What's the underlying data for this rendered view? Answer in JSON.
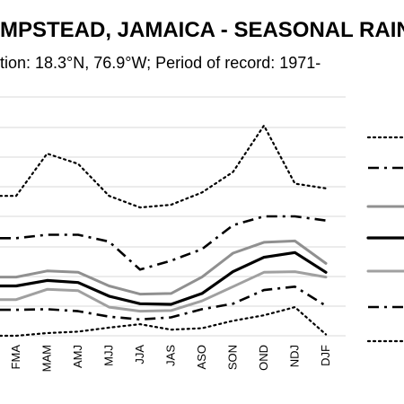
{
  "title": "MPSTEAD, JAMAICA - SEASONAL RAINF",
  "subtitle": "tion: 18.3°N, 76.9°W; Period of record: 1971-",
  "chart_data": {
    "type": "line",
    "categories": [
      "FMA",
      "MAM",
      "AMJ",
      "MJJ",
      "JJA",
      "JAS",
      "ASO",
      "SON",
      "OND",
      "NDJ",
      "DJF"
    ],
    "categories_visible_partial": "first category at left edge is cropped",
    "grid": "horizontal",
    "legend": "right, labels cropped",
    "series": [
      {
        "style": "dotted",
        "color": "#000000",
        "values": [
          12.5,
          18.7,
          17.2,
          12.5,
          10.8,
          11.2,
          13.0,
          16.0,
          22.8,
          14.3,
          13.6
        ]
      },
      {
        "style": "dashdot",
        "color": "#000000",
        "values": [
          6.3,
          6.8,
          6.8,
          5.8,
          1.7,
          3.0,
          4.7,
          8.2,
          9.5,
          9.5,
          8.9
        ]
      },
      {
        "style": "solid",
        "color": "#909090",
        "values": [
          0.6,
          1.5,
          1.3,
          -0.7,
          -1.9,
          -1.8,
          0.6,
          4.1,
          5.7,
          5.9,
          2.6
        ]
      },
      {
        "style": "solid",
        "color": "#000000",
        "values": [
          -0.7,
          0.1,
          -0.2,
          -2.2,
          -3.3,
          -3.4,
          -1.8,
          1.4,
          3.5,
          4.2,
          1.3
        ]
      },
      {
        "style": "solid",
        "color": "#a0a0a0",
        "values": [
          -2.7,
          -1.2,
          -1.4,
          -3.8,
          -4.4,
          -4.3,
          -2.9,
          -0.8,
          1.3,
          1.4,
          0.6
        ]
      },
      {
        "style": "dashdot",
        "color": "#000000",
        "values": [
          -4.2,
          -4.1,
          -4.4,
          -5.2,
          -5.6,
          -5.3,
          -4.1,
          -3.3,
          -1.3,
          -0.8,
          -3.6
        ]
      },
      {
        "style": "dotted",
        "color": "#000000",
        "values": [
          -8.0,
          -7.6,
          -7.4,
          -6.8,
          -6.3,
          -7.1,
          -6.9,
          -5.8,
          -5.0,
          -3.8,
          -7.8
        ]
      }
    ]
  }
}
